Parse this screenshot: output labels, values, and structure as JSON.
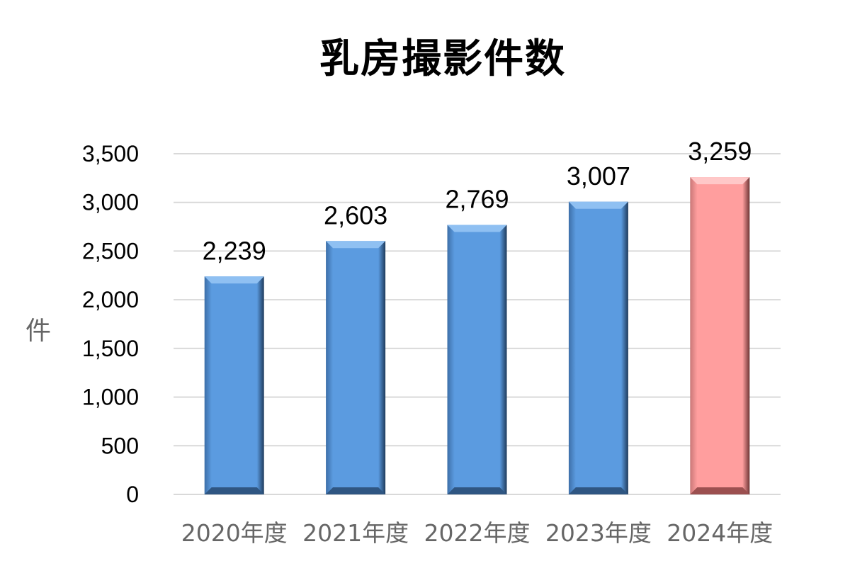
{
  "chart_data": {
    "type": "bar",
    "title": "乳房撮影件数",
    "ylabel": "件",
    "xlabel": "",
    "categories": [
      "2020年度",
      "2021年度",
      "2022年度",
      "2023年度",
      "2024年度"
    ],
    "values": [
      2239,
      2603,
      2769,
      3007,
      3259
    ],
    "data_labels": [
      "2,239",
      "2,603",
      "2,769",
      "3,007",
      "3,259"
    ],
    "ylim": [
      0,
      3500
    ],
    "yticks": [
      0,
      500,
      1000,
      1500,
      2000,
      2500,
      3000,
      3500
    ],
    "ytick_labels": [
      "0",
      "500",
      "1,000",
      "1,500",
      "2,000",
      "2,500",
      "3,000",
      "3,500"
    ],
    "grid": true,
    "legend": "none",
    "colors": {
      "bar_default": "#5b9be0",
      "bar_highlight": "#ff9e9e",
      "gridline": "#d9d9d9"
    },
    "bar_colors": [
      "#5b9be0",
      "#5b9be0",
      "#5b9be0",
      "#5b9be0",
      "#ff9e9e"
    ]
  }
}
